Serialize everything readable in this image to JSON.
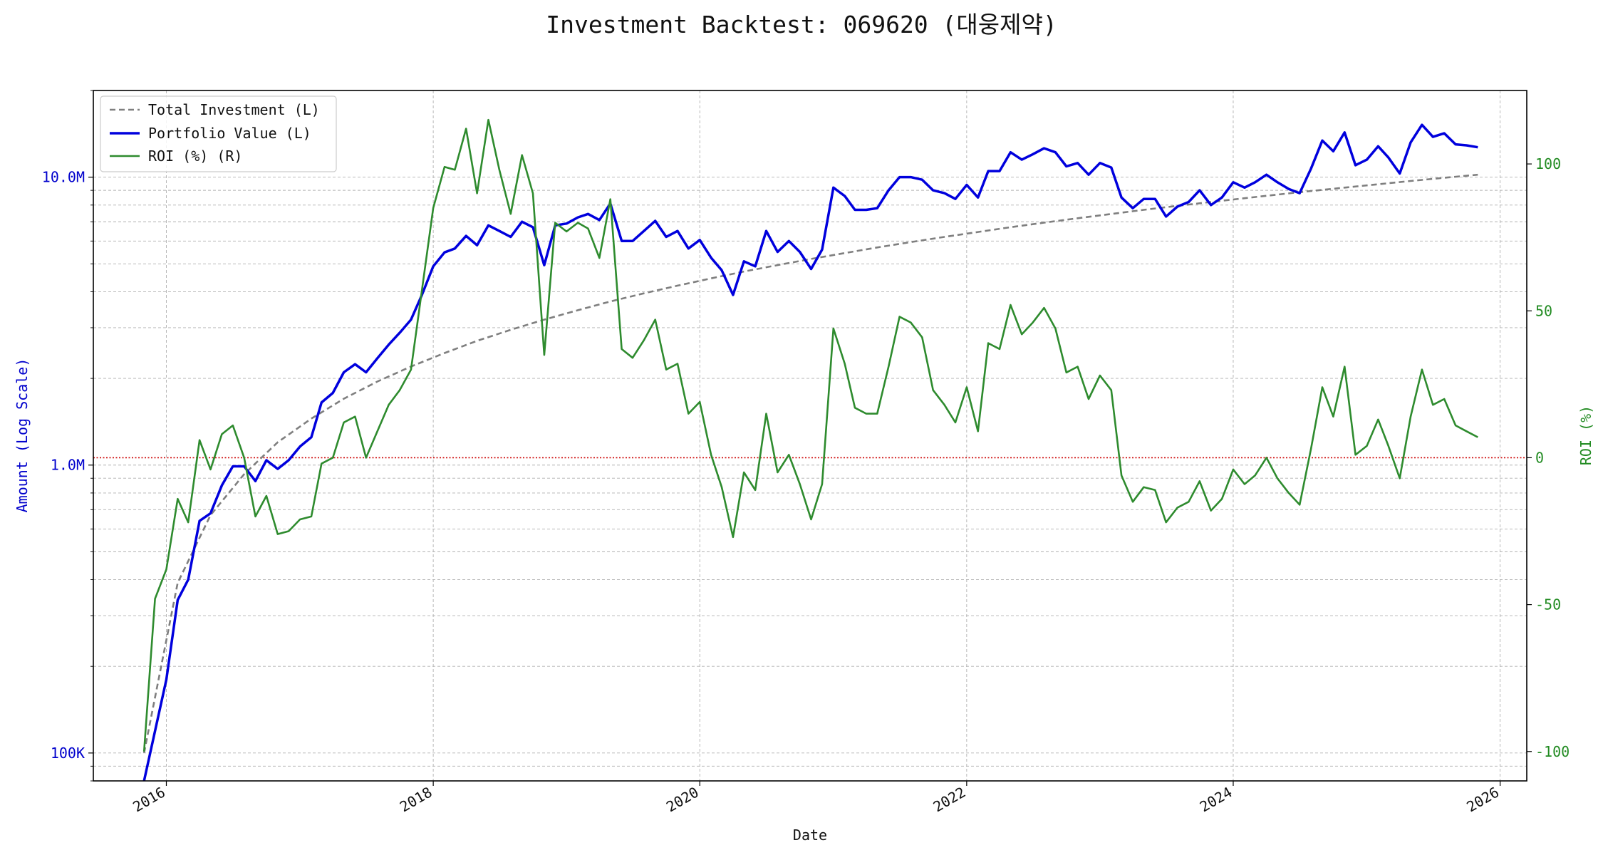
{
  "chart_data": {
    "type": "line",
    "title": "Investment Backtest: 069620 (대웅제약)",
    "xlabel": "Date",
    "ylabel_left": "Amount (Log Scale)",
    "ylabel_right": "ROI (%)",
    "left_scale": "log",
    "xlim": [
      "2015-06-15",
      "2026-03-15"
    ],
    "ylim_left": [
      80000,
      20000000
    ],
    "ylim_right": [
      -110,
      125
    ],
    "x_ticks": [
      "2016",
      "2018",
      "2020",
      "2022",
      "2024",
      "2026"
    ],
    "left_ticks": [
      "100K",
      "1.0M",
      "10.0M"
    ],
    "right_ticks": [
      "-100",
      "-50",
      "0",
      "50",
      "100"
    ],
    "grid": true,
    "legend_position": "top-left",
    "reference_line": {
      "axis": "right",
      "value": 0,
      "color": "#cc0000"
    },
    "colors": {
      "total": "#7f7f7f",
      "portfolio": "#0000dd",
      "roi": "#2e8b2e",
      "left_axis": "#0000cc",
      "right_axis": "#228b22"
    },
    "series": [
      {
        "name": "Total Investment (L)",
        "axis": "left",
        "x": [
          "2015-11-01",
          "2016-02-01",
          "2016-05-01",
          "2016-08-01",
          "2016-11-01",
          "2017-02-01",
          "2017-05-01",
          "2017-08-01",
          "2017-11-01",
          "2018-02-01",
          "2018-05-01",
          "2018-08-01",
          "2018-11-01",
          "2019-02-01",
          "2019-05-01",
          "2019-08-01",
          "2019-11-01",
          "2020-02-01",
          "2020-05-01",
          "2020-08-01",
          "2020-11-01",
          "2021-02-01",
          "2021-05-01",
          "2021-08-01",
          "2021-11-01",
          "2022-02-01",
          "2022-05-01",
          "2022-08-01",
          "2022-11-01",
          "2023-02-01",
          "2023-05-01",
          "2023-08-01",
          "2023-11-01",
          "2024-02-01",
          "2024-05-01",
          "2024-08-01",
          "2024-11-01",
          "2025-02-01",
          "2025-05-01",
          "2025-08-01",
          "2025-11-01"
        ],
        "values": [
          100000,
          390000,
          670000,
          930000,
          1200000,
          1450000,
          1700000,
          1950000,
          2200000,
          2450000,
          2700000,
          2950000,
          3200000,
          3450000,
          3700000,
          3950000,
          4200000,
          4450000,
          4700000,
          4950000,
          5200000,
          5450000,
          5700000,
          5950000,
          6200000,
          6450000,
          6700000,
          6950000,
          7200000,
          7450000,
          7700000,
          7950000,
          8200000,
          8450000,
          8700000,
          8950000,
          9200000,
          9450000,
          9700000,
          9950000,
          10200000
        ]
      },
      {
        "name": "Portfolio Value (L)",
        "axis": "left",
        "x": [
          "2015-11-01",
          "2016-01-01",
          "2016-02-01",
          "2016-03-01",
          "2016-04-01",
          "2016-05-01",
          "2016-06-01",
          "2016-07-01",
          "2016-08-01",
          "2016-09-01",
          "2016-10-01",
          "2016-11-01",
          "2016-12-01",
          "2017-01-01",
          "2017-02-01",
          "2017-03-01",
          "2017-04-01",
          "2017-05-01",
          "2017-06-01",
          "2017-07-01",
          "2017-08-01",
          "2017-09-01",
          "2017-10-01",
          "2017-11-01",
          "2017-12-01",
          "2018-01-01",
          "2018-02-01",
          "2018-03-01",
          "2018-04-01",
          "2018-05-01",
          "2018-06-01",
          "2018-07-01",
          "2018-08-01",
          "2018-09-01",
          "2018-10-01",
          "2018-11-01",
          "2018-12-01",
          "2019-01-01",
          "2019-02-01",
          "2019-03-01",
          "2019-04-01",
          "2019-05-01",
          "2019-06-01",
          "2019-07-01",
          "2019-08-01",
          "2019-09-01",
          "2019-10-01",
          "2019-11-01",
          "2019-12-01",
          "2020-01-01",
          "2020-02-01",
          "2020-03-01",
          "2020-04-01",
          "2020-05-01",
          "2020-06-01",
          "2020-07-01",
          "2020-08-01",
          "2020-09-01",
          "2020-10-01",
          "2020-11-01",
          "2020-12-01",
          "2021-01-01",
          "2021-02-01",
          "2021-03-01",
          "2021-04-01",
          "2021-05-01",
          "2021-06-01",
          "2021-07-01",
          "2021-08-01",
          "2021-09-01",
          "2021-10-01",
          "2021-11-01",
          "2021-12-01",
          "2022-01-01",
          "2022-02-01",
          "2022-03-01",
          "2022-04-01",
          "2022-05-01",
          "2022-06-01",
          "2022-07-01",
          "2022-08-01",
          "2022-09-01",
          "2022-10-01",
          "2022-11-01",
          "2022-12-01",
          "2023-01-01",
          "2023-02-01",
          "2023-03-01",
          "2023-04-01",
          "2023-05-01",
          "2023-06-01",
          "2023-07-01",
          "2023-08-01",
          "2023-09-01",
          "2023-10-01",
          "2023-11-01",
          "2023-12-01",
          "2024-01-01",
          "2024-02-01",
          "2024-03-01",
          "2024-04-01",
          "2024-05-01",
          "2024-06-01",
          "2024-07-01",
          "2024-08-01",
          "2024-09-01",
          "2024-10-01",
          "2024-11-01",
          "2024-12-01",
          "2025-01-01",
          "2025-02-01",
          "2025-03-01",
          "2025-04-01",
          "2025-05-01",
          "2025-06-01",
          "2025-07-01",
          "2025-08-01",
          "2025-09-01",
          "2025-10-01",
          "2025-11-01"
        ],
        "values": [
          70000,
          180000,
          340000,
          400000,
          640000,
          680000,
          850000,
          990000,
          990000,
          880000,
          1040000,
          970000,
          1040000,
          1160000,
          1250000,
          1650000,
          1780000,
          2100000,
          2240000,
          2100000,
          2350000,
          2620000,
          2880000,
          3200000,
          3900000,
          4900000,
          5480000,
          5650000,
          6250000,
          5800000,
          6800000,
          6500000,
          6200000,
          7000000,
          6700000,
          4950000,
          6800000,
          6900000,
          7250000,
          7450000,
          7100000,
          8100000,
          6000000,
          6000000,
          6500000,
          7050000,
          6200000,
          6500000,
          5650000,
          6050000,
          5250000,
          4750000,
          3900000,
          5100000,
          4900000,
          6500000,
          5500000,
          6000000,
          5500000,
          4800000,
          5600000,
          9200000,
          8600000,
          7700000,
          7700000,
          7800000,
          9000000,
          10000000,
          10000000,
          9800000,
          9000000,
          8800000,
          8400000,
          9400000,
          8500000,
          10500000,
          10500000,
          12200000,
          11500000,
          12000000,
          12600000,
          12200000,
          10900000,
          11200000,
          10200000,
          11200000,
          10800000,
          8500000,
          7800000,
          8400000,
          8400000,
          7300000,
          7900000,
          8200000,
          9000000,
          8000000,
          8500000,
          9600000,
          9200000,
          9600000,
          10200000,
          9600000,
          9100000,
          8800000,
          10700000,
          13400000,
          12300000,
          14300000,
          11000000,
          11500000,
          12800000,
          11700000,
          10300000,
          13200000,
          15200000,
          13800000,
          14200000,
          13000000,
          12900000,
          12700000
        ]
      },
      {
        "name": "ROI (%) (R)",
        "axis": "right",
        "x": [
          "2015-11-01",
          "2015-12-01",
          "2016-01-01",
          "2016-02-01",
          "2016-03-01",
          "2016-04-01",
          "2016-05-01",
          "2016-06-01",
          "2016-07-01",
          "2016-08-01",
          "2016-09-01",
          "2016-10-01",
          "2016-11-01",
          "2016-12-01",
          "2017-01-01",
          "2017-02-01",
          "2017-03-01",
          "2017-04-01",
          "2017-05-01",
          "2017-06-01",
          "2017-07-01",
          "2017-08-01",
          "2017-09-01",
          "2017-10-01",
          "2017-11-01",
          "2017-12-01",
          "2018-01-01",
          "2018-02-01",
          "2018-03-01",
          "2018-04-01",
          "2018-05-01",
          "2018-06-01",
          "2018-07-01",
          "2018-08-01",
          "2018-09-01",
          "2018-10-01",
          "2018-11-01",
          "2018-12-01",
          "2019-01-01",
          "2019-02-01",
          "2019-03-01",
          "2019-04-01",
          "2019-05-01",
          "2019-06-01",
          "2019-07-01",
          "2019-08-01",
          "2019-09-01",
          "2019-10-01",
          "2019-11-01",
          "2019-12-01",
          "2020-01-01",
          "2020-02-01",
          "2020-03-01",
          "2020-04-01",
          "2020-05-01",
          "2020-06-01",
          "2020-07-01",
          "2020-08-01",
          "2020-09-01",
          "2020-10-01",
          "2020-11-01",
          "2020-12-01",
          "2021-01-01",
          "2021-02-01",
          "2021-03-01",
          "2021-04-01",
          "2021-05-01",
          "2021-06-01",
          "2021-07-01",
          "2021-08-01",
          "2021-09-01",
          "2021-10-01",
          "2021-11-01",
          "2021-12-01",
          "2022-01-01",
          "2022-02-01",
          "2022-03-01",
          "2022-04-01",
          "2022-05-01",
          "2022-06-01",
          "2022-07-01",
          "2022-08-01",
          "2022-09-01",
          "2022-10-01",
          "2022-11-01",
          "2022-12-01",
          "2023-01-01",
          "2023-02-01",
          "2023-03-01",
          "2023-04-01",
          "2023-05-01",
          "2023-06-01",
          "2023-07-01",
          "2023-08-01",
          "2023-09-01",
          "2023-10-01",
          "2023-11-01",
          "2023-12-01",
          "2024-01-01",
          "2024-02-01",
          "2024-03-01",
          "2024-04-01",
          "2024-05-01",
          "2024-06-01",
          "2024-07-01",
          "2024-08-01",
          "2024-09-01",
          "2024-10-01",
          "2024-11-01",
          "2024-12-01",
          "2025-01-01",
          "2025-02-01",
          "2025-03-01",
          "2025-04-01",
          "2025-05-01",
          "2025-06-01",
          "2025-07-01",
          "2025-08-01",
          "2025-09-01",
          "2025-10-01",
          "2025-11-01"
        ],
        "values": [
          -100,
          -48,
          -38,
          -14,
          -22,
          6,
          -4,
          8,
          11,
          0,
          -20,
          -13,
          -26,
          -25,
          -21,
          -20,
          -2,
          0,
          12,
          14,
          0,
          9,
          18,
          23,
          30,
          57,
          85,
          99,
          98,
          112,
          90,
          115,
          98,
          83,
          103,
          90,
          35,
          80,
          77,
          80,
          78,
          68,
          88,
          37,
          34,
          40,
          47,
          30,
          32,
          15,
          19,
          1,
          -10,
          -27,
          -5,
          -11,
          15,
          -5,
          1,
          -9,
          -21,
          -9,
          44,
          32,
          17,
          15,
          15,
          31,
          48,
          46,
          41,
          23,
          18,
          12,
          24,
          9,
          39,
          37,
          52,
          42,
          46,
          51,
          44,
          29,
          31,
          20,
          28,
          23,
          -6,
          -15,
          -10,
          -11,
          -22,
          -17,
          -15,
          -8,
          -18,
          -14,
          -4,
          -9,
          -6,
          0,
          -7,
          -12,
          -16,
          3,
          24,
          14,
          31,
          1,
          4,
          13,
          4,
          -7,
          14,
          30,
          18,
          20,
          11,
          9,
          7
        ]
      }
    ]
  }
}
